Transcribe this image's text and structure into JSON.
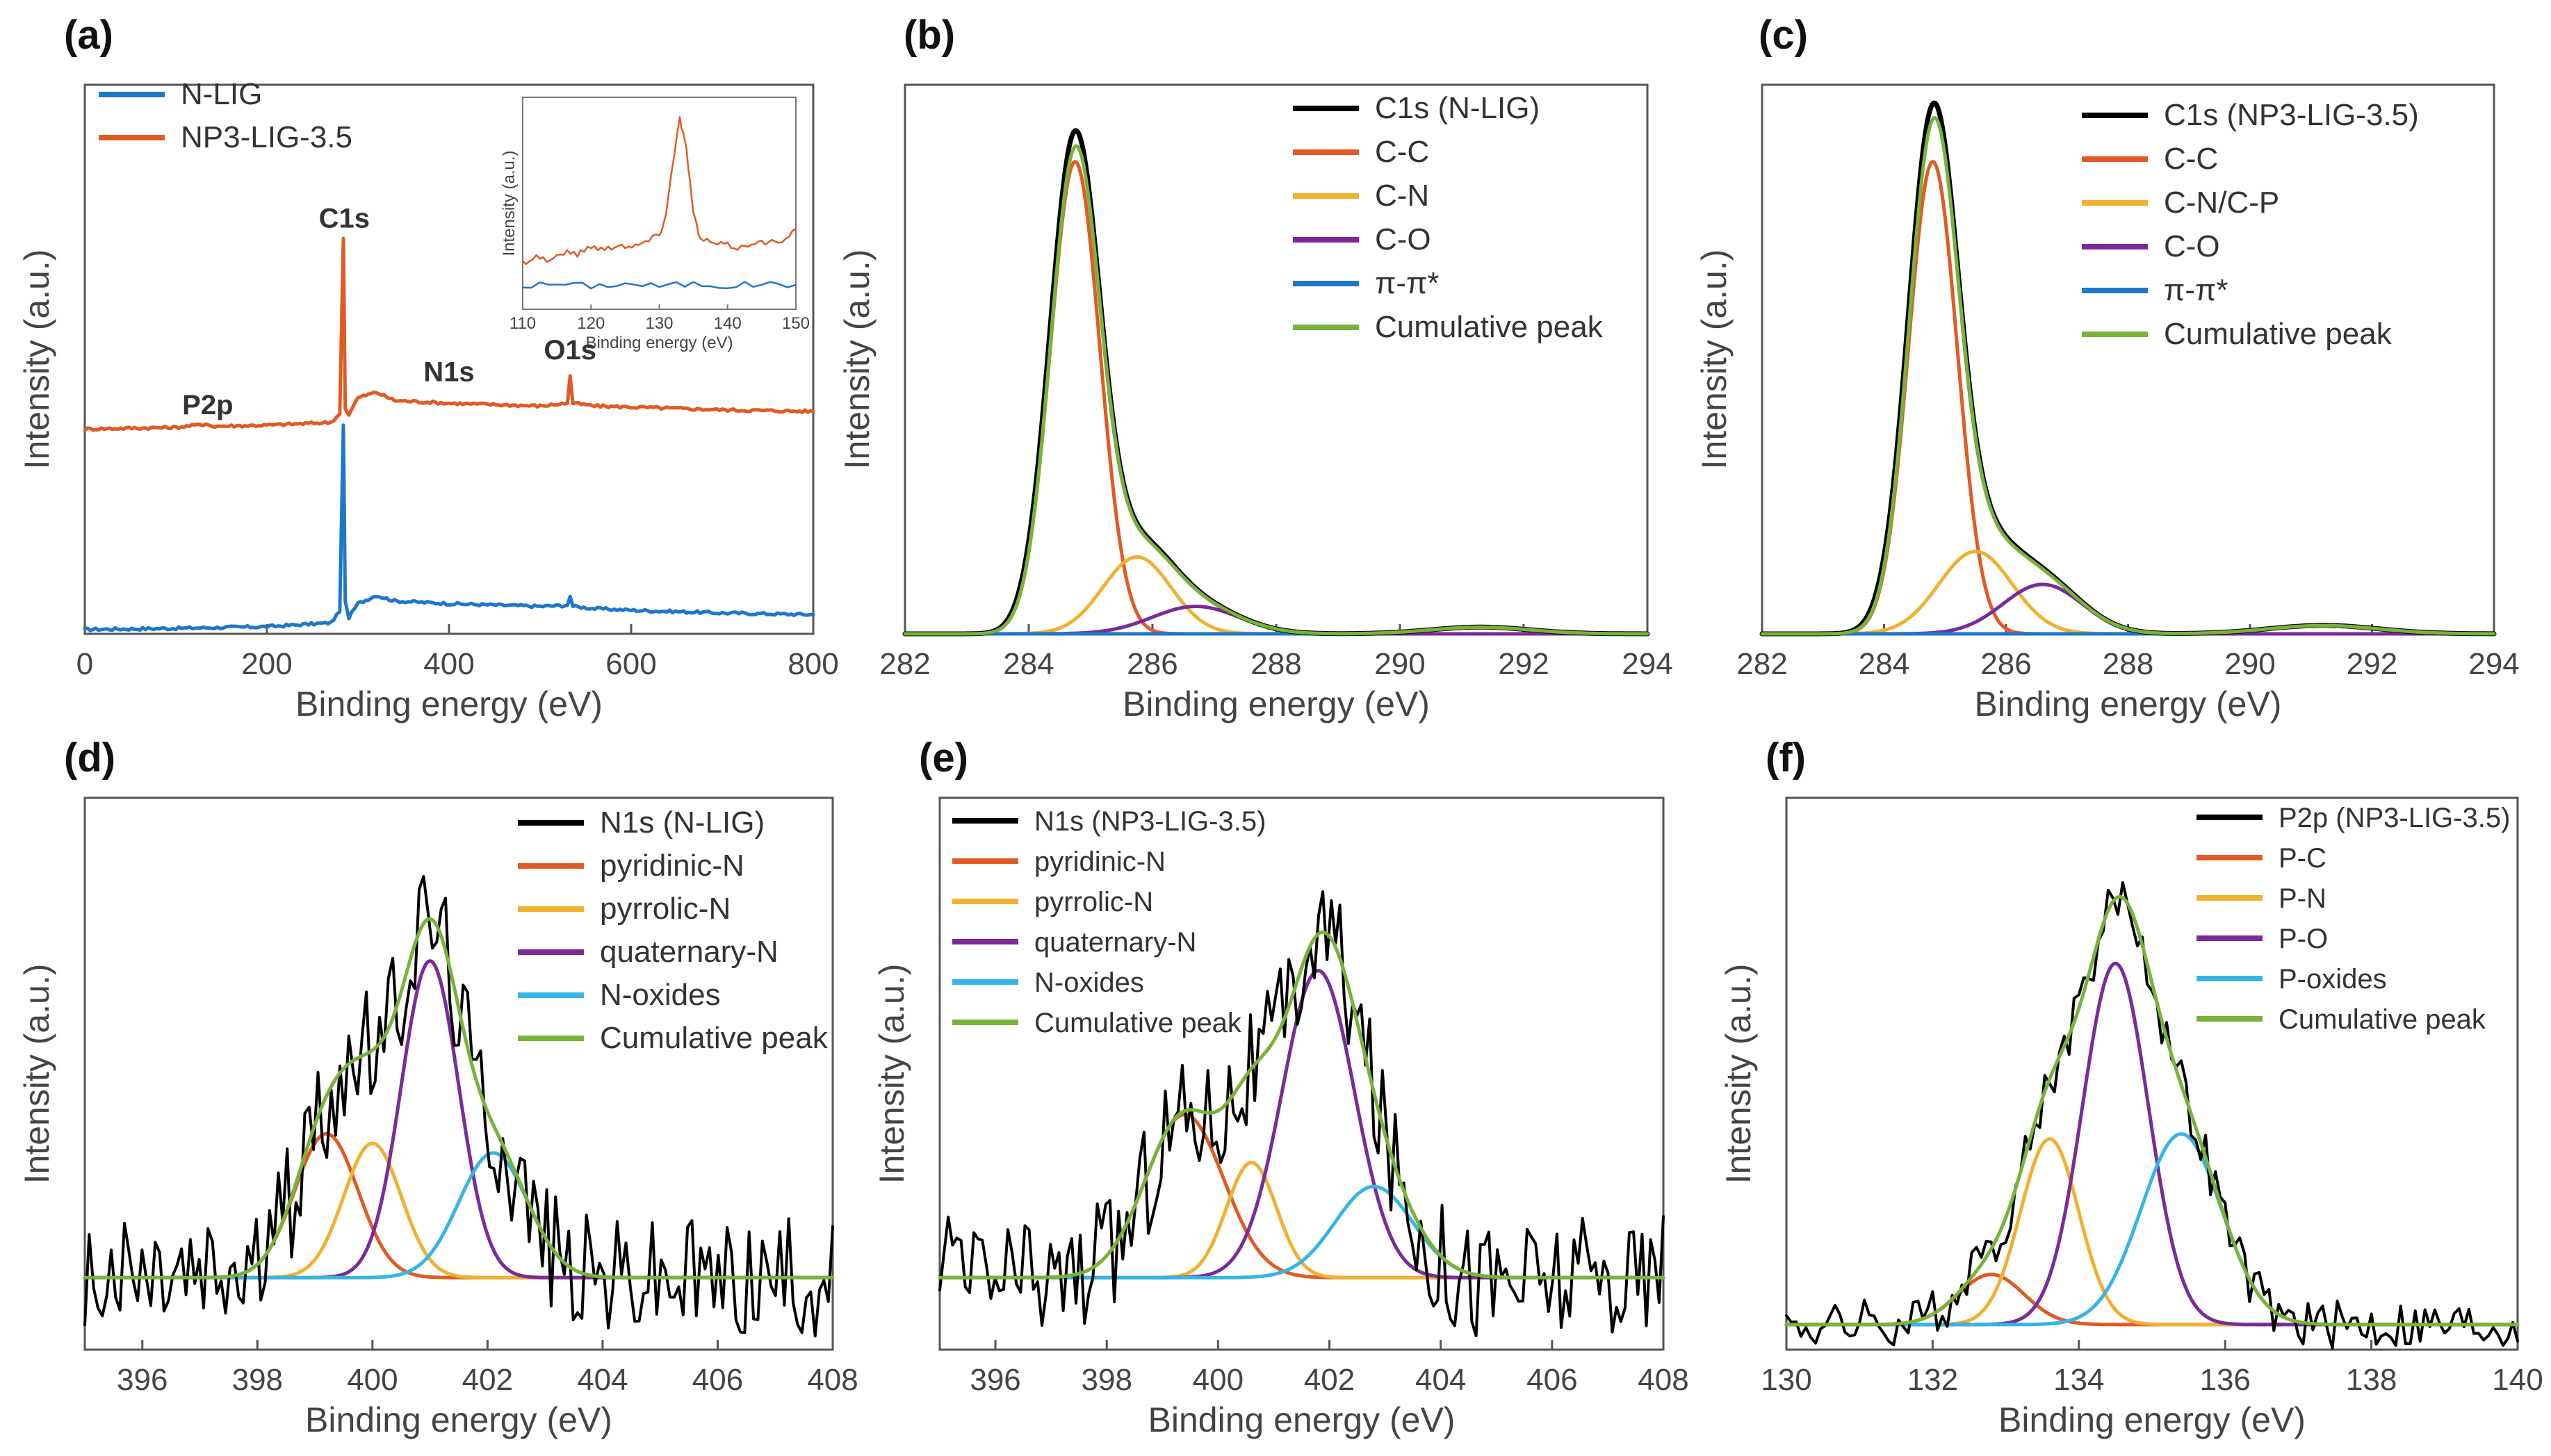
{
  "chart_data": [
    {
      "id": "a",
      "type": "line",
      "panel_label": "(a)",
      "xlabel": "Binding energy (eV)",
      "ylabel": "Intensity (a.u.)",
      "xlim": [
        0,
        800
      ],
      "ylim": [
        0,
        100
      ],
      "xticks": [
        "0",
        "200",
        "400",
        "600",
        "800"
      ],
      "legend_position": "top-left",
      "legend": [
        {
          "name": "N-LIG",
          "color": "#1f77c9"
        },
        {
          "name": "NP3-LIG-3.5",
          "color": "#e05a25"
        }
      ],
      "annotations": [
        {
          "text": "C1s",
          "x": 285,
          "y": 74,
          "color": "#c83c1c"
        },
        {
          "text": "P2p",
          "x": 135,
          "y": 40,
          "color": "#c83c1c"
        },
        {
          "text": "N1s",
          "x": 400,
          "y": 46,
          "color": "#c83c1c"
        },
        {
          "text": "O1s",
          "x": 533,
          "y": 50,
          "color": "#c83c1c"
        }
      ],
      "series": [
        {
          "name": "N-LIG",
          "color": "#1f77c9",
          "x": [
            0,
            100,
            200,
            270,
            280,
            284,
            286,
            290,
            300,
            320,
            340,
            400,
            500,
            530,
            533,
            536,
            560,
            600,
            700,
            800
          ],
          "y": [
            0.8,
            1.0,
            1.3,
            2.0,
            4,
            38,
            6,
            3,
            5.5,
            7.0,
            6.0,
            5.5,
            5.0,
            5.2,
            6.8,
            5.0,
            4.6,
            4.3,
            3.8,
            3.5
          ]
        },
        {
          "name": "NP3-LIG-3.5",
          "color": "#e05a25",
          "x": [
            0,
            100,
            133,
            140,
            200,
            270,
            280,
            284,
            286,
            290,
            300,
            320,
            340,
            400,
            500,
            530,
            533,
            536,
            560,
            600,
            700,
            800
          ],
          "y": [
            37.3,
            37.6,
            38.2,
            37.8,
            38.0,
            38.5,
            40,
            72,
            41,
            40,
            43,
            44,
            42.5,
            42.0,
            41.5,
            42,
            47,
            42,
            41.5,
            41.3,
            40.8,
            40.5
          ]
        }
      ],
      "inset": {
        "xlabel": "Binding energy (eV)",
        "ylabel": "Intensity (a.u.)",
        "xlim": [
          110,
          150
        ],
        "ylim": [
          0,
          100
        ],
        "xticks": [
          "110",
          "120",
          "130",
          "140",
          "150"
        ],
        "series": [
          {
            "name": "N-LIG",
            "color": "#1f77c9",
            "x": [
              110,
              115,
              120,
              125,
              130,
              135,
              140,
              145,
              150
            ],
            "y": [
              11,
              12,
              11,
              12,
              11,
              12,
              11,
              12,
              11.5
            ]
          },
          {
            "name": "NP3-LIG-3.5",
            "color": "#e05a25",
            "x": [
              110,
              112,
              114,
              116,
              118,
              120,
              122,
              124,
              126,
              128,
              130,
              131,
              132,
              133,
              134,
              135,
              136,
              138,
              140,
              142,
              144,
              146,
              148,
              150
            ],
            "y": [
              22,
              25,
              23,
              27,
              26,
              30,
              28,
              31,
              29,
              32,
              35,
              45,
              70,
              90,
              75,
              45,
              33,
              31,
              30,
              29,
              32,
              31,
              33,
              38
            ]
          }
        ]
      }
    },
    {
      "id": "b",
      "type": "line",
      "panel_label": "(b)",
      "xlabel": "Binding energy (eV)",
      "ylabel": "Intensity (a.u.)",
      "xlim": [
        282,
        294
      ],
      "ylim": [
        0,
        1.0
      ],
      "xticks": [
        "282",
        "284",
        "286",
        "288",
        "290",
        "292",
        "294"
      ],
      "legend_position": "top-right",
      "legend": [
        {
          "name": "C1s (N-LIG)",
          "color": "#000000"
        },
        {
          "name": "C-C",
          "color": "#e05a25"
        },
        {
          "name": "C-N",
          "color": "#f0b030"
        },
        {
          "name": "C-O",
          "color": "#7a2a9a"
        },
        {
          "name": "π-π*",
          "color": "#1f77c9"
        },
        {
          "name": "Cumulative peak",
          "color": "#77b33a"
        }
      ],
      "components": [
        {
          "name": "C-C",
          "center": 284.75,
          "height": 0.86,
          "width": 0.4
        },
        {
          "name": "C-N",
          "center": 285.75,
          "height": 0.14,
          "width": 0.55
        },
        {
          "name": "C-O",
          "center": 286.7,
          "height": 0.05,
          "width": 0.7
        },
        {
          "name": "π-π*",
          "center": 291.3,
          "height": 0.012,
          "width": 0.8
        }
      ]
    },
    {
      "id": "c",
      "type": "line",
      "panel_label": "(c)",
      "xlabel": "Binding energy (eV)",
      "ylabel": "Intensity (a.u.)",
      "xlim": [
        282,
        294
      ],
      "ylim": [
        0,
        1.0
      ],
      "xticks": [
        "282",
        "284",
        "286",
        "288",
        "290",
        "292",
        "294"
      ],
      "legend_position": "top-right",
      "legend": [
        {
          "name": "C1s (NP3-LIG-3.5)",
          "color": "#000000"
        },
        {
          "name": "C-C",
          "color": "#e05a25"
        },
        {
          "name": "C-N/C-P",
          "color": "#f0b030"
        },
        {
          "name": "C-O",
          "color": "#7a2a9a"
        },
        {
          "name": "π-π*",
          "color": "#1f77c9"
        },
        {
          "name": "Cumulative peak",
          "color": "#77b33a"
        }
      ],
      "components": [
        {
          "name": "C-C",
          "center": 284.8,
          "height": 0.86,
          "width": 0.4
        },
        {
          "name": "C-N/C-P",
          "center": 285.5,
          "height": 0.15,
          "width": 0.6
        },
        {
          "name": "C-O",
          "center": 286.6,
          "height": 0.09,
          "width": 0.65
        },
        {
          "name": "π-π*",
          "center": 291.2,
          "height": 0.015,
          "width": 0.9
        }
      ]
    },
    {
      "id": "d",
      "type": "line",
      "panel_label": "(d)",
      "xlabel": "Binding energy (eV)",
      "ylabel": "Intensity (a.u.)",
      "xlim": [
        395,
        408
      ],
      "ylim": [
        -0.15,
        1.0
      ],
      "xticks": [
        "396",
        "398",
        "400",
        "402",
        "404",
        "406",
        "408"
      ],
      "legend_position": "top-right",
      "legend": [
        {
          "name": "N1s (N-LIG)",
          "color": "#000000"
        },
        {
          "name": "pyridinic-N",
          "color": "#e05a25"
        },
        {
          "name": "pyrrolic-N",
          "color": "#f0b030"
        },
        {
          "name": "quaternary-N",
          "color": "#7a2a9a"
        },
        {
          "name": "N-oxides",
          "color": "#35b5e5"
        },
        {
          "name": "Cumulative peak",
          "color": "#77b33a"
        }
      ],
      "components": [
        {
          "name": "pyridinic-N",
          "center": 399.2,
          "height": 0.3,
          "width": 0.55
        },
        {
          "name": "pyrrolic-N",
          "center": 400.0,
          "height": 0.28,
          "width": 0.5
        },
        {
          "name": "quaternary-N",
          "center": 401.0,
          "height": 0.66,
          "width": 0.5
        },
        {
          "name": "N-oxides",
          "center": 402.1,
          "height": 0.26,
          "width": 0.6
        }
      ]
    },
    {
      "id": "e",
      "type": "line",
      "panel_label": "(e)",
      "xlabel": "Binding energy (eV)",
      "ylabel": "Intensity (a.u.)",
      "xlim": [
        395,
        408
      ],
      "ylim": [
        -0.15,
        1.0
      ],
      "xticks": [
        "396",
        "398",
        "400",
        "402",
        "404",
        "406",
        "408"
      ],
      "legend_position": "top-left",
      "legend": [
        {
          "name": "N1s (NP3-LIG-3.5)",
          "color": "#000000"
        },
        {
          "name": "pyridinic-N",
          "color": "#e05a25"
        },
        {
          "name": "pyrrolic-N",
          "color": "#f0b030"
        },
        {
          "name": "quaternary-N",
          "color": "#7a2a9a"
        },
        {
          "name": "N-oxides",
          "color": "#35b5e5"
        },
        {
          "name": "Cumulative peak",
          "color": "#77b33a"
        }
      ],
      "components": [
        {
          "name": "pyridinic-N",
          "center": 399.4,
          "height": 0.34,
          "width": 0.7
        },
        {
          "name": "pyrrolic-N",
          "center": 400.6,
          "height": 0.24,
          "width": 0.45
        },
        {
          "name": "quaternary-N",
          "center": 401.8,
          "height": 0.64,
          "width": 0.65
        },
        {
          "name": "N-oxides",
          "center": 402.8,
          "height": 0.19,
          "width": 0.7
        }
      ]
    },
    {
      "id": "f",
      "type": "line",
      "panel_label": "(f)",
      "xlabel": "Binding energy (eV)",
      "ylabel": "Intensity (a.u.)",
      "xlim": [
        130,
        140
      ],
      "ylim": [
        -0.05,
        1.05
      ],
      "xticks": [
        "130",
        "132",
        "134",
        "136",
        "138",
        "140"
      ],
      "legend_position": "top-right",
      "legend": [
        {
          "name": "P2p (NP3-LIG-3.5)",
          "color": "#000000"
        },
        {
          "name": "P-C",
          "color": "#e05a25"
        },
        {
          "name": "P-N",
          "color": "#f0b030"
        },
        {
          "name": "P-O",
          "color": "#7a2a9a"
        },
        {
          "name": "P-oxides",
          "color": "#35b5e5"
        },
        {
          "name": "Cumulative peak",
          "color": "#77b33a"
        }
      ],
      "components": [
        {
          "name": "P-C",
          "center": 132.8,
          "height": 0.1,
          "width": 0.45
        },
        {
          "name": "P-N",
          "center": 133.6,
          "height": 0.37,
          "width": 0.4
        },
        {
          "name": "P-O",
          "center": 134.5,
          "height": 0.72,
          "width": 0.45
        },
        {
          "name": "P-oxides",
          "center": 135.4,
          "height": 0.38,
          "width": 0.55
        }
      ]
    }
  ]
}
